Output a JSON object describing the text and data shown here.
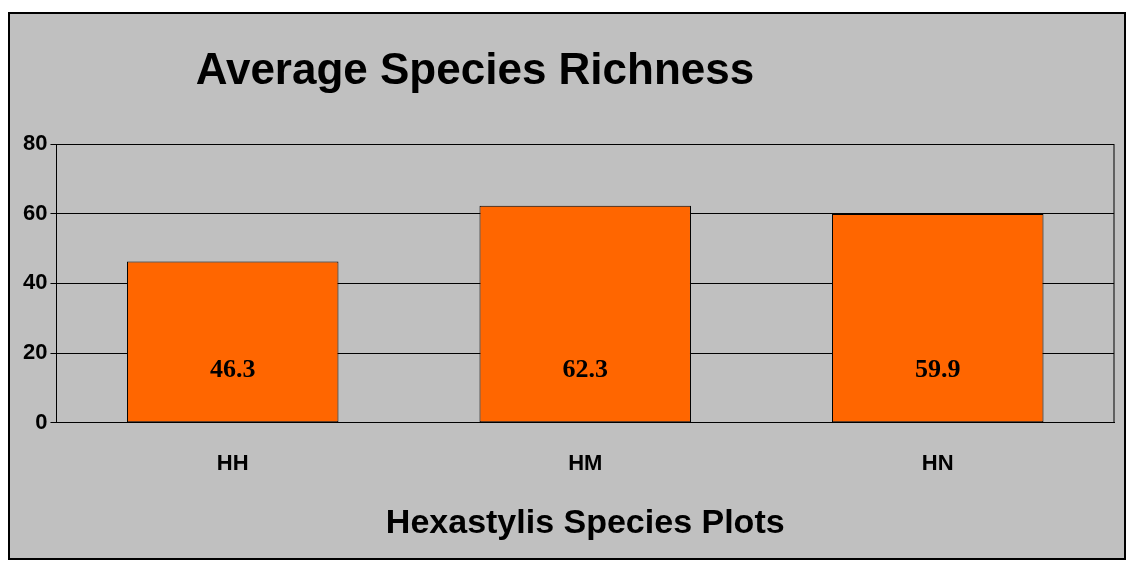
{
  "chart_data": {
    "type": "bar",
    "title": "Average Species  Richness",
    "xlabel": "Hexastylis Species Plots",
    "categories": [
      "HH",
      "HM",
      "HN"
    ],
    "values": [
      46.3,
      62.3,
      59.9
    ],
    "color": "#ff6600",
    "ylim": [
      0,
      80
    ],
    "yticks": [
      0,
      20,
      40,
      60,
      80
    ],
    "grid": "y",
    "legend": false,
    "data_labels": true
  }
}
